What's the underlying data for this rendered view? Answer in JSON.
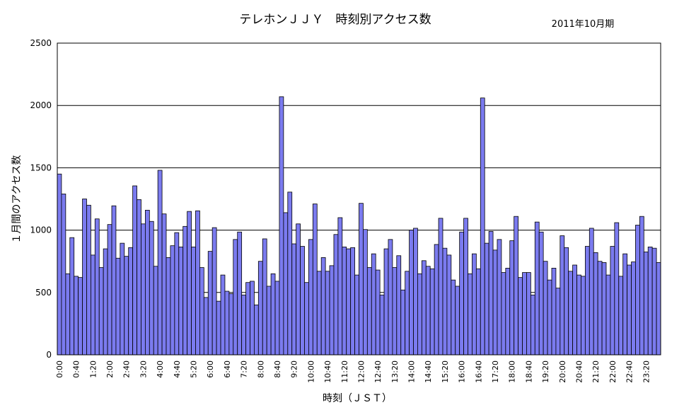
{
  "chart_data": {
    "type": "bar",
    "title": "テレホンＪＪＹ　時刻別アクセス数",
    "period_label": "2011年10月期",
    "xlabel": "時刻（ＪＳＴ）",
    "ylabel": "１月間のアクセス数",
    "ylim": [
      0,
      2500
    ],
    "yticks": [
      0,
      500,
      1000,
      1500,
      2000,
      2500
    ],
    "grid": true,
    "bar_color": "#7b7bef",
    "x_tick_labels": [
      "0:00",
      "0:40",
      "1:20",
      "2:00",
      "2:40",
      "3:20",
      "4:00",
      "4:40",
      "5:20",
      "6:00",
      "6:40",
      "7:20",
      "8:00",
      "8:40",
      "9:20",
      "10:00",
      "10:40",
      "11:20",
      "12:00",
      "12:40",
      "13:20",
      "14:00",
      "14:40",
      "15:20",
      "16:00",
      "16:40",
      "17:20",
      "18:00",
      "18:40",
      "19:20",
      "20:00",
      "20:40",
      "21:20",
      "22:00",
      "22:40",
      "23:20"
    ],
    "interval_minutes": 10,
    "values": [
      1450,
      1290,
      650,
      940,
      630,
      620,
      1250,
      1200,
      800,
      1090,
      700,
      850,
      1045,
      1195,
      775,
      895,
      790,
      860,
      1355,
      1245,
      1050,
      1160,
      1070,
      710,
      1480,
      1130,
      780,
      875,
      980,
      865,
      1030,
      1150,
      865,
      1155,
      700,
      460,
      830,
      1020,
      430,
      640,
      510,
      490,
      925,
      985,
      480,
      580,
      590,
      400,
      750,
      930,
      550,
      650,
      590,
      2070,
      1140,
      1305,
      890,
      1050,
      870,
      580,
      925,
      1210,
      670,
      780,
      670,
      715,
      965,
      1100,
      865,
      850,
      860,
      640,
      1215,
      1005,
      700,
      810,
      680,
      480,
      850,
      925,
      700,
      795,
      520,
      670,
      1000,
      1015,
      650,
      755,
      710,
      690,
      885,
      1095,
      855,
      800,
      600,
      550,
      985,
      1095,
      650,
      810,
      690,
      2060,
      895,
      990,
      840,
      925,
      660,
      695,
      915,
      1110,
      620,
      660,
      660,
      480,
      1065,
      985,
      750,
      600,
      695,
      535,
      955,
      860,
      670,
      720,
      640,
      630,
      870,
      1015,
      820,
      750,
      740,
      640,
      870,
      1060,
      630,
      810,
      720,
      745,
      1040,
      1110,
      825,
      865,
      855,
      740
    ]
  }
}
